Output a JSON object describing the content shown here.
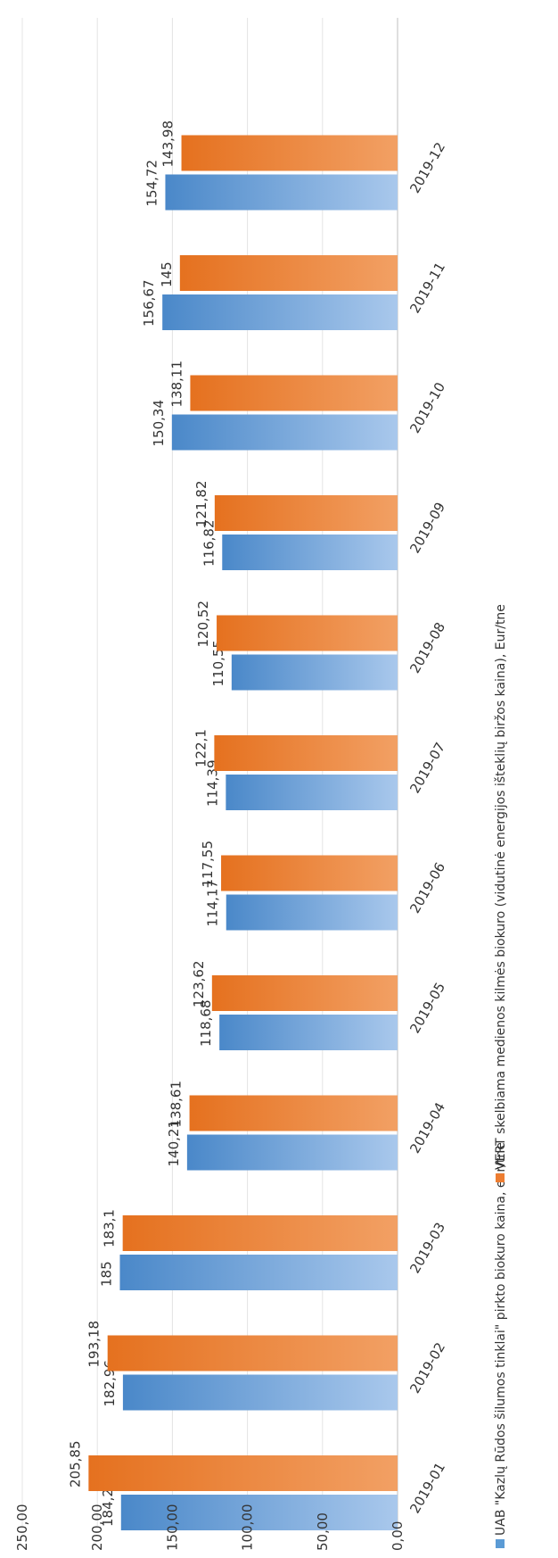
{
  "chart_data": {
    "type": "bar",
    "orientation": "vertical-bars-rotated",
    "categories": [
      "2019-01",
      "2019-02",
      "2019-03",
      "2019-04",
      "2019-05",
      "2019-06",
      "2019-07",
      "2019-08",
      "2019-09",
      "2019-10",
      "2019-11",
      "2019-12"
    ],
    "series": [
      {
        "name": "UAB \"Kazlų Rūdos šilumos tinklai\" pirkto biokuro kaina, eur/tne",
        "color": "#5b9bd5",
        "values": [
          184.21,
          182.96,
          185,
          140.21,
          118.68,
          114.17,
          114.39,
          110.55,
          116.82,
          150.34,
          156.67,
          154.72
        ],
        "labels": [
          "184,21",
          "182,96",
          "185",
          "140,21",
          "118,68",
          "114,17",
          "114,39",
          "110,55",
          "116,82",
          "150,34",
          "156,67",
          "154,72"
        ]
      },
      {
        "name": "VERT skelbiama medienos kilmės biokuro (vidutinė energijos išteklių biržos kaina), Eur/tne",
        "color": "#ed7d31",
        "values": [
          205.85,
          193.18,
          183.1,
          138.61,
          123.62,
          117.55,
          122.1,
          120.52,
          121.82,
          138.11,
          145,
          143.98
        ],
        "labels": [
          "205,85",
          "193,18",
          "183,1",
          "138,61",
          "123,62",
          "117,55",
          "122,1",
          "120,52",
          "121,82",
          "138,11",
          "145",
          "143,98"
        ]
      }
    ],
    "y_ticks": [
      "250,00",
      "200,00",
      "150,00",
      "100,00",
      "50,00",
      "0,00"
    ],
    "ylim": [
      0,
      250
    ],
    "grid": true,
    "legend_position": "bottom"
  }
}
